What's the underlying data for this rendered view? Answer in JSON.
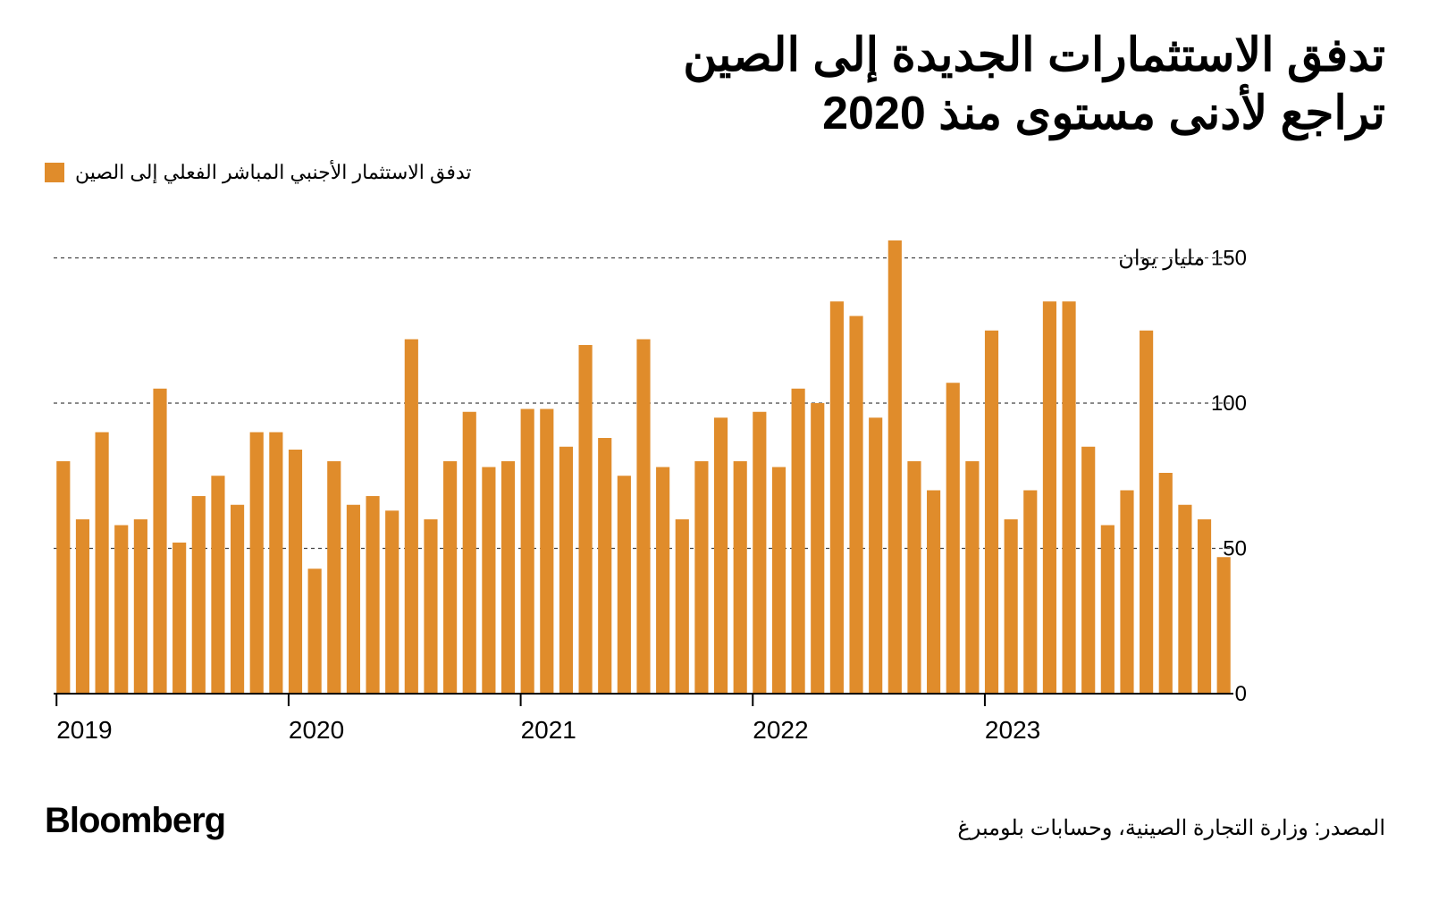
{
  "title_line1": "تدفق الاستثمارات الجديدة إلى الصين",
  "title_line2": "تراجع لأدنى مستوى منذ 2020",
  "legend_label": "تدفق الاستثمار الأجنبي المباشر الفعلي إلى الصين",
  "source": "المصدر: وزارة التجارة الصينية، وحسابات بلومبرغ",
  "brand": "Bloomberg",
  "chart": {
    "type": "bar",
    "bar_color": "#e08c2b",
    "background_color": "#ffffff",
    "grid_color": "#444444",
    "axis_color": "#000000",
    "text_color": "#000000",
    "y_axis_side": "right",
    "y_tick_top_label": "150 مليار يوان",
    "y_tick_labels_rest": [
      "100",
      "50",
      "0"
    ],
    "y_ticks": [
      0,
      50,
      100,
      150
    ],
    "ylim": [
      0,
      160
    ],
    "x_year_labels": [
      "2019",
      "2020",
      "2021",
      "2022",
      "2023"
    ],
    "x_label_fontsize": 28,
    "y_label_fontsize": 24,
    "grid_dash": "4,4",
    "bar_gap_ratio": 0.3,
    "values": [
      80,
      60,
      90,
      58,
      60,
      105,
      52,
      68,
      75,
      65,
      90,
      90,
      84,
      43,
      80,
      65,
      68,
      63,
      122,
      60,
      80,
      97,
      78,
      80,
      98,
      98,
      85,
      120,
      88,
      75,
      122,
      78,
      60,
      80,
      95,
      80,
      97,
      78,
      105,
      100,
      135,
      130,
      95,
      156,
      80,
      70,
      107,
      80,
      125,
      60,
      70,
      135,
      135,
      85,
      58,
      70,
      125,
      76,
      65,
      60,
      47
    ]
  }
}
